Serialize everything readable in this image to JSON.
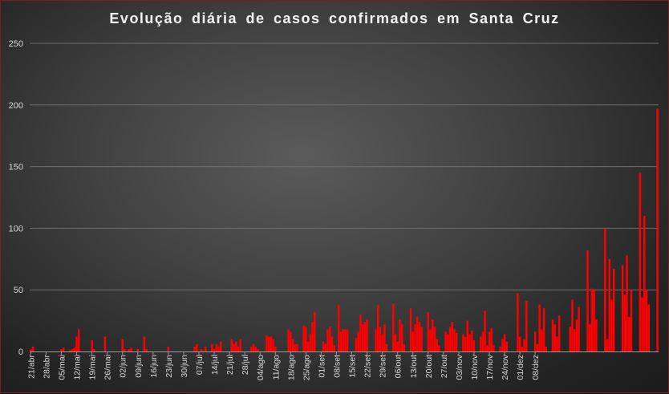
{
  "chart_data": {
    "type": "bar",
    "title": "Evolução diária de casos confirmados em Santa Cruz",
    "xlabel": "",
    "ylabel": "",
    "ylim": [
      0,
      250
    ],
    "y_ticks": [
      0,
      50,
      100,
      150,
      200,
      250
    ],
    "grid": true,
    "bar_color": "#ff0000",
    "x_tick_labels": [
      "21/abr",
      "28/abr",
      "05/mai",
      "12/mai",
      "19/mai",
      "26/mai",
      "02/jun",
      "09/jun",
      "16/jun",
      "23/jun",
      "30/jun",
      "07/jul",
      "14/jul",
      "21/jul",
      "28/jul",
      "04/ago",
      "11/ago",
      "18/ago",
      "25/ago",
      "01/set",
      "08/set",
      "15/set",
      "22/set",
      "29/set",
      "06/out",
      "13/out",
      "20/out",
      "27/out",
      "03/nov",
      "10/nov",
      "17/nov",
      "24/nov",
      "01/dez",
      "08/dez"
    ],
    "start_label": "21/abr",
    "values": [
      2,
      4,
      0,
      0,
      0,
      0,
      0,
      0,
      0,
      0,
      0,
      0,
      0,
      0,
      2,
      3,
      0,
      0,
      1,
      2,
      3,
      12,
      18,
      0,
      0,
      0,
      0,
      0,
      9,
      2,
      0,
      0,
      0,
      0,
      12,
      0,
      0,
      0,
      0,
      0,
      0,
      0,
      10,
      2,
      0,
      2,
      3,
      0,
      0,
      2,
      0,
      0,
      12,
      2,
      0,
      0,
      0,
      0,
      0,
      0,
      0,
      0,
      0,
      4,
      0,
      0,
      0,
      0,
      0,
      0,
      0,
      0,
      0,
      0,
      0,
      4,
      6,
      0,
      2,
      0,
      4,
      0,
      0,
      6,
      2,
      6,
      4,
      8,
      0,
      0,
      0,
      0,
      10,
      6,
      8,
      4,
      10,
      0,
      0,
      0,
      0,
      4,
      6,
      4,
      2,
      0,
      0,
      0,
      13,
      12,
      12,
      10,
      4,
      0,
      0,
      0,
      0,
      0,
      18,
      16,
      10,
      6,
      6,
      0,
      0,
      21,
      20,
      8,
      14,
      24,
      32,
      0,
      0,
      0,
      8,
      6,
      18,
      20,
      12,
      5,
      0,
      38,
      16,
      18,
      18,
      18,
      0,
      0,
      0,
      11,
      16,
      30,
      22,
      24,
      26,
      0,
      0,
      0,
      18,
      38,
      20,
      14,
      22,
      6,
      0,
      0,
      39,
      14,
      8,
      26,
      22,
      6,
      0,
      0,
      35,
      16,
      22,
      28,
      24,
      20,
      0,
      0,
      32,
      18,
      26,
      20,
      10,
      5,
      0,
      0,
      16,
      14,
      20,
      24,
      18,
      15,
      0,
      0,
      14,
      12,
      25,
      14,
      17,
      9,
      0,
      0,
      12,
      16,
      33,
      5,
      16,
      19,
      5,
      0,
      0,
      4,
      10,
      14,
      8,
      0,
      0,
      0,
      0,
      47,
      12,
      4,
      10,
      41,
      0,
      0,
      0,
      16,
      6,
      38,
      18,
      35,
      4,
      0,
      0,
      26,
      22,
      12,
      29,
      0,
      0,
      0,
      0,
      20,
      42,
      18,
      26,
      36,
      0,
      0,
      0,
      82,
      22,
      51,
      50,
      26,
      0,
      0,
      0,
      100,
      10,
      75,
      42,
      67,
      0,
      0,
      0,
      70,
      46,
      78,
      28,
      50,
      0,
      0,
      0,
      145,
      44,
      110,
      50,
      38,
      0,
      0,
      0,
      197
    ]
  }
}
